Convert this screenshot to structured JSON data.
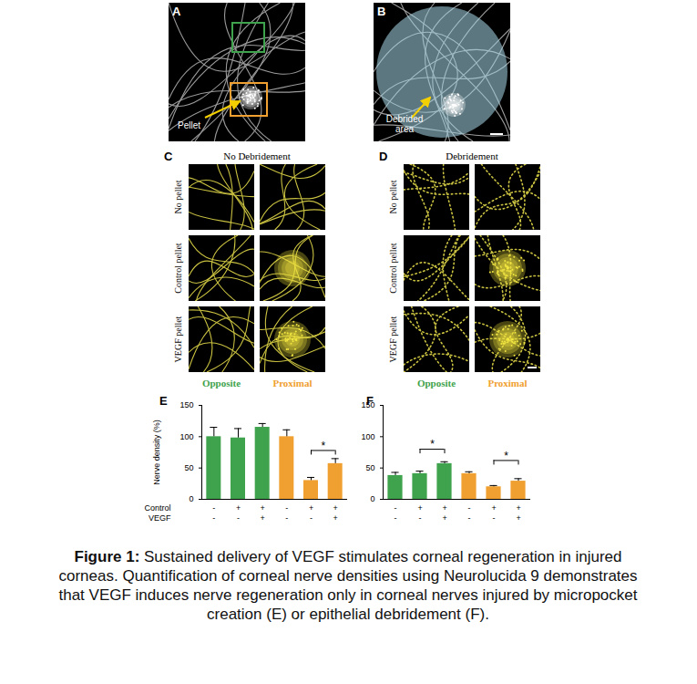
{
  "figure": {
    "A": {
      "label": "A",
      "annotation": "Pellet"
    },
    "B": {
      "label": "B",
      "annotation": [
        "Debrided",
        "area"
      ]
    },
    "C": {
      "label": "C",
      "title": "No Debridement"
    },
    "D": {
      "label": "D",
      "title": "Debridement"
    },
    "rows": [
      "No pellet",
      "Control pellet",
      "VEGF pellet"
    ],
    "columns": [
      {
        "name": "Opposite",
        "color": "#3fa34d"
      },
      {
        "name": "Proximal",
        "color": "#f0a030"
      }
    ]
  },
  "chart_data": [
    {
      "type": "bar",
      "title": "E",
      "y_label": "Nerve density (%)",
      "categories": [
        null,
        null,
        null,
        null,
        null,
        null
      ],
      "values": [
        100,
        98,
        115,
        100,
        30,
        57
      ],
      "errors": [
        15,
        15,
        6,
        11,
        5,
        8
      ],
      "colors": [
        "#3fa34d",
        "#3fa34d",
        "#3fa34d",
        "#f0a030",
        "#f0a030",
        "#f0a030"
      ],
      "ylim": [
        0,
        150
      ],
      "yticks": [
        0,
        50,
        100,
        150
      ],
      "x_rows": [
        {
          "label": "Control",
          "signs": [
            "-",
            "+",
            "+",
            "-",
            "+",
            "+"
          ]
        },
        {
          "label": "VEGF",
          "signs": [
            "-",
            "-",
            "+",
            "-",
            "-",
            "+"
          ]
        }
      ],
      "significance": [
        {
          "from": 4,
          "to": 5,
          "y": 78,
          "label": "*"
        }
      ]
    },
    {
      "type": "bar",
      "title": "F",
      "categories": [
        null,
        null,
        null,
        null,
        null,
        null
      ],
      "values": [
        38,
        41,
        57,
        41,
        20,
        29
      ],
      "errors": [
        5,
        4,
        3,
        3,
        2,
        4
      ],
      "colors": [
        "#3fa34d",
        "#3fa34d",
        "#3fa34d",
        "#f0a030",
        "#f0a030",
        "#f0a030"
      ],
      "ylim": [
        0,
        150
      ],
      "yticks": [
        0,
        50,
        100,
        150
      ],
      "x_rows": [
        {
          "signs": [
            "-",
            "+",
            "+",
            "-",
            "+",
            "+"
          ]
        },
        {
          "signs": [
            "-",
            "-",
            "+",
            "-",
            "-",
            "+"
          ]
        }
      ],
      "significance": [
        {
          "from": 1,
          "to": 2,
          "y": 80,
          "label": "*"
        },
        {
          "from": 4,
          "to": 5,
          "y": 62,
          "label": "*"
        }
      ]
    }
  ],
  "caption": {
    "label": "Figure 1:",
    "text": "Sustained delivery of VEGF stimulates corneal regeneration in injured corneas. Quantification of corneal nerve densities using Neurolucida 9 demonstrates that VEGF induces nerve regeneration only in corneal nerves injured by micropocket creation (E) or epithelial debridement (F)."
  }
}
